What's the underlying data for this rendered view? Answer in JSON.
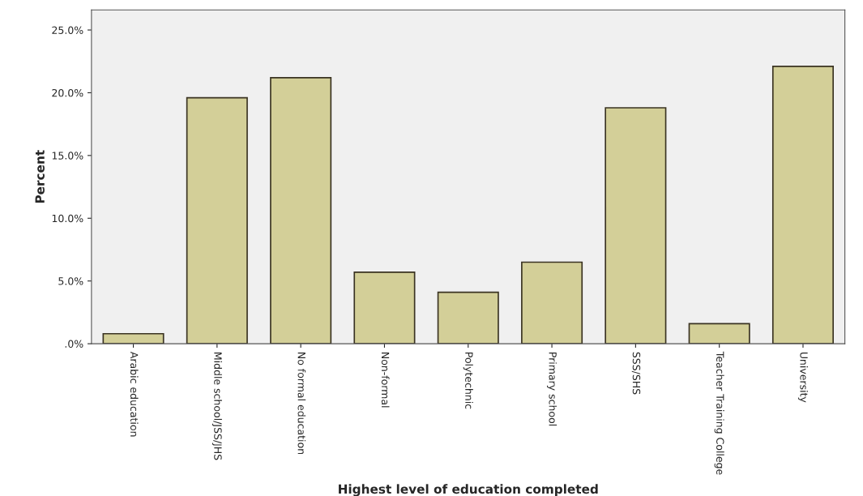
{
  "chart_data": {
    "type": "bar",
    "xlabel": "Highest level of education completed",
    "ylabel": "Percent",
    "categories": [
      "Arabic education",
      "Middle school/JSS/JHS",
      "No formal education",
      "Non-formal",
      "Polytechnic",
      "Primary school",
      "SSS/SHS",
      "Teacher Training College",
      "University"
    ],
    "values": [
      0.8,
      19.6,
      21.2,
      5.7,
      4.1,
      6.5,
      18.8,
      1.6,
      22.1
    ],
    "color": "#d3cf98",
    "ylim": [
      0,
      26.6
    ],
    "yticks": [
      {
        "value": 0,
        "label": ".0%"
      },
      {
        "value": 5,
        "label": "5.0%"
      },
      {
        "value": 10,
        "label": "10.0%"
      },
      {
        "value": 15,
        "label": "15.0%"
      },
      {
        "value": 20,
        "label": "20.0%"
      },
      {
        "value": 25,
        "label": "25.0%"
      }
    ],
    "grid": false,
    "legend": false
  }
}
